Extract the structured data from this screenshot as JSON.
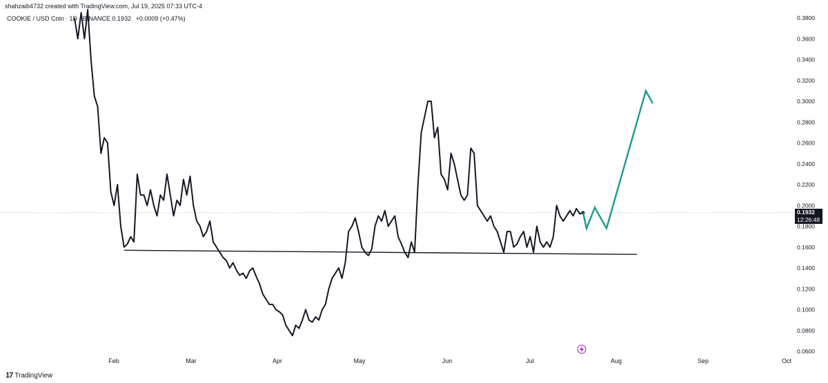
{
  "header": {
    "created_by": "shahzaib4732 created with TradingView.com, Jul 19, 2025 07:33 UTC-4"
  },
  "symbol": {
    "label": "COOKIE / USD Coin · 1D · BINANCE",
    "price": "0.1932",
    "change": "+0.0009 (+0.47%)"
  },
  "price_tag": {
    "price": "0.1932",
    "countdown": "12:26:48"
  },
  "footer": {
    "logo": "17",
    "brand": "TradingView"
  },
  "colors": {
    "line": "#131722",
    "projection": "#1a9a8a",
    "axis_text": "#131722",
    "grid_dotted": "#9598a1",
    "flash_icon": "#9c27b0"
  },
  "chart_data": {
    "type": "line",
    "x_ticks": [
      "Feb",
      "Mar",
      "Apr",
      "May",
      "Jun",
      "Jul",
      "Aug",
      "Sep",
      "Oct"
    ],
    "y_ticks": [
      "0.0600",
      "0.0800",
      "0.1000",
      "0.1200",
      "0.1400",
      "0.1600",
      "0.1800",
      "0.2000",
      "0.2200",
      "0.2400",
      "0.2600",
      "0.2800",
      "0.3000",
      "0.3200",
      "0.3400",
      "0.3600",
      "0.3800"
    ],
    "ylim": [
      0.06,
      0.38
    ],
    "series": [
      {
        "values": [
          0.38,
          0.36,
          0.385,
          0.36,
          0.39,
          0.34,
          0.305,
          0.295,
          0.25,
          0.265,
          0.26,
          0.213,
          0.2,
          0.22,
          0.18,
          0.16,
          0.163,
          0.17,
          0.165,
          0.23,
          0.21,
          0.21,
          0.2,
          0.215,
          0.2,
          0.19,
          0.21,
          0.205,
          0.23,
          0.21,
          0.19,
          0.205,
          0.2,
          0.225,
          0.21,
          0.228,
          0.2,
          0.185,
          0.18,
          0.17,
          0.175,
          0.185,
          0.165,
          0.16,
          0.155,
          0.15,
          0.147,
          0.14,
          0.145,
          0.138,
          0.133,
          0.135,
          0.13,
          0.137,
          0.14,
          0.132,
          0.125,
          0.115,
          0.11,
          0.105,
          0.105,
          0.1,
          0.098,
          0.095,
          0.085,
          0.08,
          0.075,
          0.085,
          0.082,
          0.09,
          0.1,
          0.09,
          0.088,
          0.093,
          0.09,
          0.1,
          0.105,
          0.12,
          0.13,
          0.135,
          0.14,
          0.13,
          0.145,
          0.175,
          0.18,
          0.188,
          0.175,
          0.16,
          0.155,
          0.152,
          0.158,
          0.18,
          0.19,
          0.185,
          0.195,
          0.18,
          0.185,
          0.19,
          0.17,
          0.163,
          0.155,
          0.15,
          0.165,
          0.155,
          0.22,
          0.27,
          0.285,
          0.3,
          0.3,
          0.265,
          0.275,
          0.23,
          0.225,
          0.215,
          0.25,
          0.24,
          0.225,
          0.21,
          0.205,
          0.21,
          0.255,
          0.25,
          0.2,
          0.195,
          0.19,
          0.185,
          0.19,
          0.18,
          0.175,
          0.165,
          0.155,
          0.175,
          0.175,
          0.16,
          0.163,
          0.17,
          0.175,
          0.16,
          0.17,
          0.155,
          0.18,
          0.165,
          0.16,
          0.165,
          0.16,
          0.17,
          0.2,
          0.19,
          0.185,
          0.19,
          0.195,
          0.19,
          0.197,
          0.192,
          0.193
        ]
      }
    ],
    "support_line": [
      0.157,
      0.153
    ],
    "projection": [
      0.1932,
      0.178,
      0.198,
      0.178,
      0.31,
      0.298
    ],
    "grid": false
  }
}
